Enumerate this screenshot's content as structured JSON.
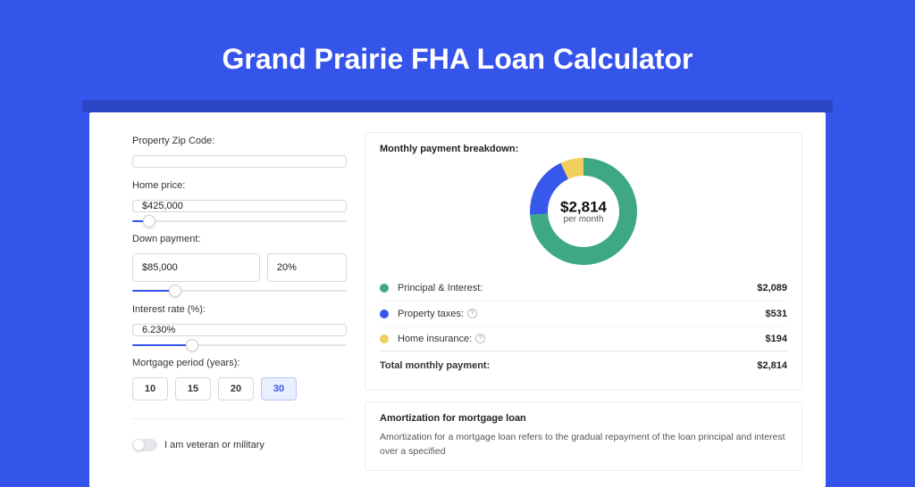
{
  "title": "Grand Prairie FHA Loan Calculator",
  "colors": {
    "page_bg": "#3554ea",
    "underbar": "#2c47c5",
    "card_bg": "#ffffff",
    "input_border": "#d7d7db",
    "accent": "#3554ea"
  },
  "form": {
    "zip": {
      "label": "Property Zip Code:",
      "value": ""
    },
    "home_price": {
      "label": "Home price:",
      "value": "$425,000",
      "slider_pct": 8
    },
    "down_payment": {
      "label": "Down payment:",
      "value": "$85,000",
      "pct": "20%",
      "slider_pct": 20
    },
    "interest_rate": {
      "label": "Interest rate (%):",
      "value": "6.230%",
      "slider_pct": 28
    },
    "period": {
      "label": "Mortgage period (years):",
      "options": [
        "10",
        "15",
        "20",
        "30"
      ],
      "selected_index": 3
    },
    "veteran": {
      "label": "I am veteran or military",
      "value": false
    }
  },
  "breakdown": {
    "title": "Monthly payment breakdown:",
    "donut": {
      "type": "donut",
      "center_value": "$2,814",
      "center_sub": "per month",
      "radius": 60,
      "thickness": 20,
      "background_color": "#ffffff",
      "slices": [
        {
          "label": "Principal & Interest:",
          "value": "$2,089",
          "pct": 74,
          "color": "#3ea884"
        },
        {
          "label": "Property taxes:",
          "value": "$531",
          "pct": 19,
          "color": "#3758ea",
          "has_info": true
        },
        {
          "label": "Home insurance:",
          "value": "$194",
          "pct": 7,
          "color": "#f0cf5c",
          "has_info": true
        }
      ]
    },
    "total": {
      "label": "Total monthly payment:",
      "value": "$2,814"
    }
  },
  "amortization": {
    "title": "Amortization for mortgage loan",
    "body": "Amortization for a mortgage loan refers to the gradual repayment of the loan principal and interest over a specified"
  }
}
